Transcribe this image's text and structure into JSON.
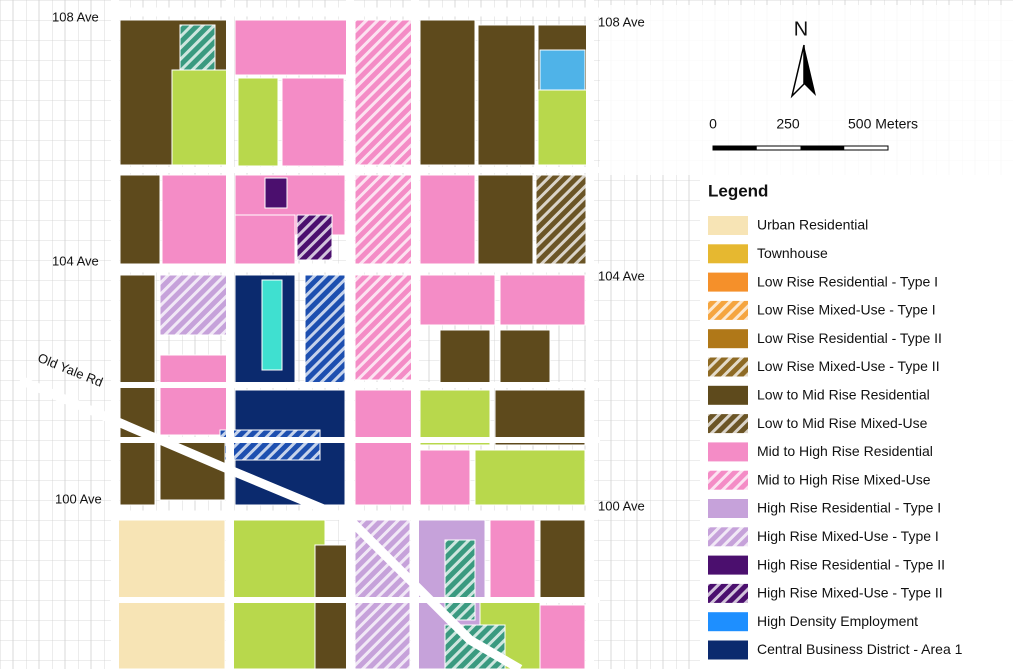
{
  "map": {
    "streets": [
      "108 Ave",
      "108 Ave",
      "104 Ave",
      "104 Ave",
      "100 Ave",
      "100 Ave",
      "Old Yale Rd"
    ],
    "north_label": "N",
    "scale_bar": {
      "labels": [
        "0",
        "250",
        "500 Meters"
      ]
    },
    "legend": {
      "title": "Legend",
      "items": [
        {
          "label": "Urban Residential",
          "color": "#f7e4b5",
          "hatched": false
        },
        {
          "label": "Townhouse",
          "color": "#e6b830",
          "hatched": false
        },
        {
          "label": "Low Rise Residential - Type I",
          "color": "#f5902a",
          "hatched": false
        },
        {
          "label": "Low Rise Mixed-Use - Type I",
          "color": "#f5a540",
          "hatched": true
        },
        {
          "label": "Low Rise Residential - Type II",
          "color": "#b07818",
          "hatched": false
        },
        {
          "label": "Low Rise Mixed-Use - Type II",
          "color": "#8e6a24",
          "hatched": true
        },
        {
          "label": "Low to Mid Rise Residential",
          "color": "#5e4a1c",
          "hatched": false
        },
        {
          "label": "Low to Mid Rise Mixed-Use",
          "color": "#6b5526",
          "hatched": true
        },
        {
          "label": "Mid to High Rise Residential",
          "color": "#f48cc6",
          "hatched": false
        },
        {
          "label": "Mid to High Rise Mixed-Use",
          "color": "#f48cc6",
          "hatched": true
        },
        {
          "label": "High Rise Residential - Type I",
          "color": "#c6a2da",
          "hatched": false
        },
        {
          "label": "High Rise Mixed-Use - Type I",
          "color": "#c6a2da",
          "hatched": true
        },
        {
          "label": "High Rise Residential - Type II",
          "color": "#4b0f6e",
          "hatched": false
        },
        {
          "label": "High Rise Mixed-Use - Type II",
          "color": "#4b0f6e",
          "hatched": true
        },
        {
          "label": "High Density Employment",
          "color": "#1e8fff",
          "hatched": false
        },
        {
          "label": "Central Business District - Area 1",
          "color": "#0b2a6e",
          "hatched": false
        }
      ]
    }
  }
}
